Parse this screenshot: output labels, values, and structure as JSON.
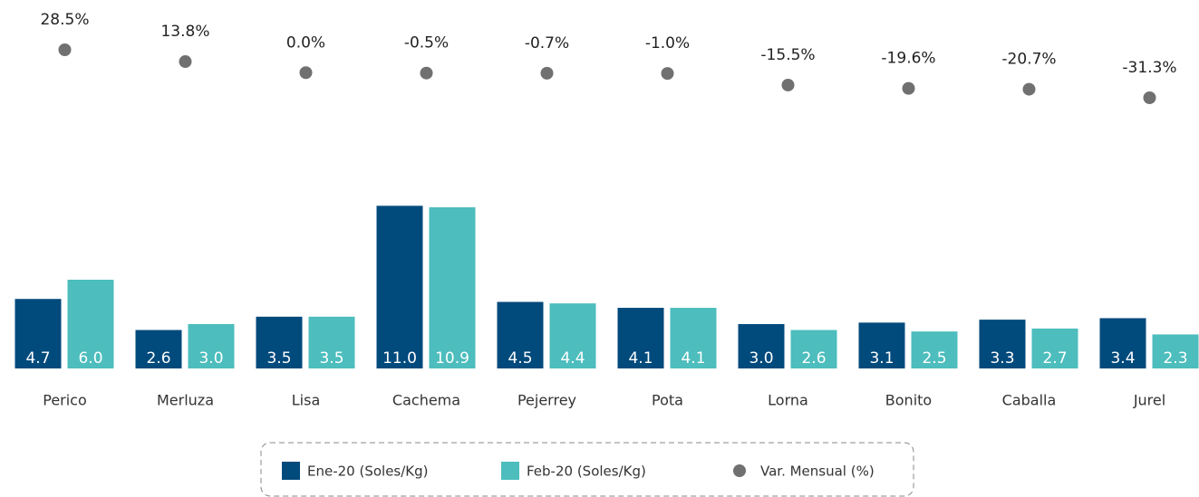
{
  "chart_data": {
    "type": "bar",
    "categories": [
      "Perico",
      "Merluza",
      "Lisa",
      "Cachema",
      "Pejerrey",
      "Pota",
      "Lorna",
      "Bonito",
      "Caballa",
      "Jurel"
    ],
    "ylim": [
      0,
      12
    ],
    "y2lim": [
      -40,
      40
    ],
    "series": [
      {
        "name": "Ene-20 (Soles/Kg)",
        "color": "#004a7c",
        "type": "bar",
        "values": [
          4.7,
          2.6,
          3.5,
          11.0,
          4.5,
          4.1,
          3.0,
          3.1,
          3.3,
          3.4
        ],
        "value_labels": [
          "4.7",
          "2.6",
          "3.5",
          "11.0",
          "4.5",
          "4.1",
          "3.0",
          "3.1",
          "3.3",
          "3.4"
        ]
      },
      {
        "name": "Feb-20 (Soles/Kg)",
        "color": "#4dbdbd",
        "type": "bar",
        "values": [
          6.0,
          3.0,
          3.5,
          10.9,
          4.4,
          4.1,
          2.6,
          2.5,
          2.7,
          2.3
        ],
        "value_labels": [
          "6.0",
          "3.0",
          "3.5",
          "10.9",
          "4.4",
          "4.1",
          "2.6",
          "2.5",
          "2.7",
          "2.3"
        ]
      },
      {
        "name": "Var. Mensual (%)",
        "color": "#707070",
        "type": "scatter",
        "axis": "y2",
        "values": [
          28.5,
          13.8,
          0.0,
          -0.5,
          -0.7,
          -1.0,
          -15.5,
          -19.6,
          -20.7,
          -31.3
        ],
        "value_labels": [
          "28.5%",
          "13.8%",
          "0.0%",
          "-0.5%",
          "-0.7%",
          "-1.0%",
          "-15.5%",
          "-19.6%",
          "-20.7%",
          "-31.3%"
        ]
      }
    ],
    "legend": "bottom"
  }
}
